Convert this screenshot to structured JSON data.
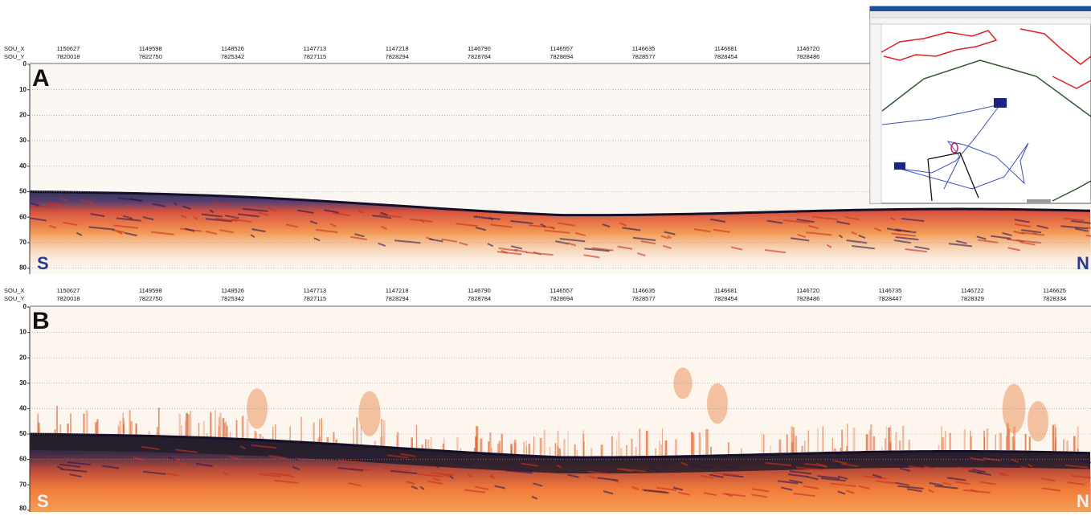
{
  "panels": [
    {
      "label": "A",
      "sou_x_label": "SOU_X",
      "sou_y_label": "SOU_Y",
      "sou_x": [
        "1150627",
        "1149598",
        "1148526",
        "1147713",
        "1147218",
        "1146790",
        "1146557",
        "1146635",
        "1146681",
        "1146720"
      ],
      "sou_y": [
        "7820018",
        "7822750",
        "7825342",
        "7827115",
        "7828294",
        "7828784",
        "7828694",
        "7828577",
        "7828454",
        "7828486"
      ],
      "depth_ticks": [
        "0",
        "10",
        "20",
        "30",
        "40",
        "50",
        "60",
        "70",
        "80"
      ],
      "left": "S",
      "right": "N"
    },
    {
      "label": "B",
      "sou_x_label": "SOU_X",
      "sou_y_label": "SOU_Y",
      "sou_x": [
        "1150627",
        "1149598",
        "1148526",
        "1147713",
        "1147218",
        "1146790",
        "1146557",
        "1146635",
        "1146681",
        "1146720",
        "1146735",
        "1146722",
        "1146625"
      ],
      "sou_y": [
        "7820018",
        "7822750",
        "7825342",
        "7827115",
        "7828294",
        "7828784",
        "7828694",
        "7828577",
        "7828454",
        "7828486",
        "7828447",
        "7828329",
        "7828334"
      ],
      "depth_ticks": [
        "0",
        "10",
        "20",
        "30",
        "40",
        "50",
        "60",
        "70",
        "80"
      ],
      "left": "S",
      "right": "N"
    }
  ]
}
